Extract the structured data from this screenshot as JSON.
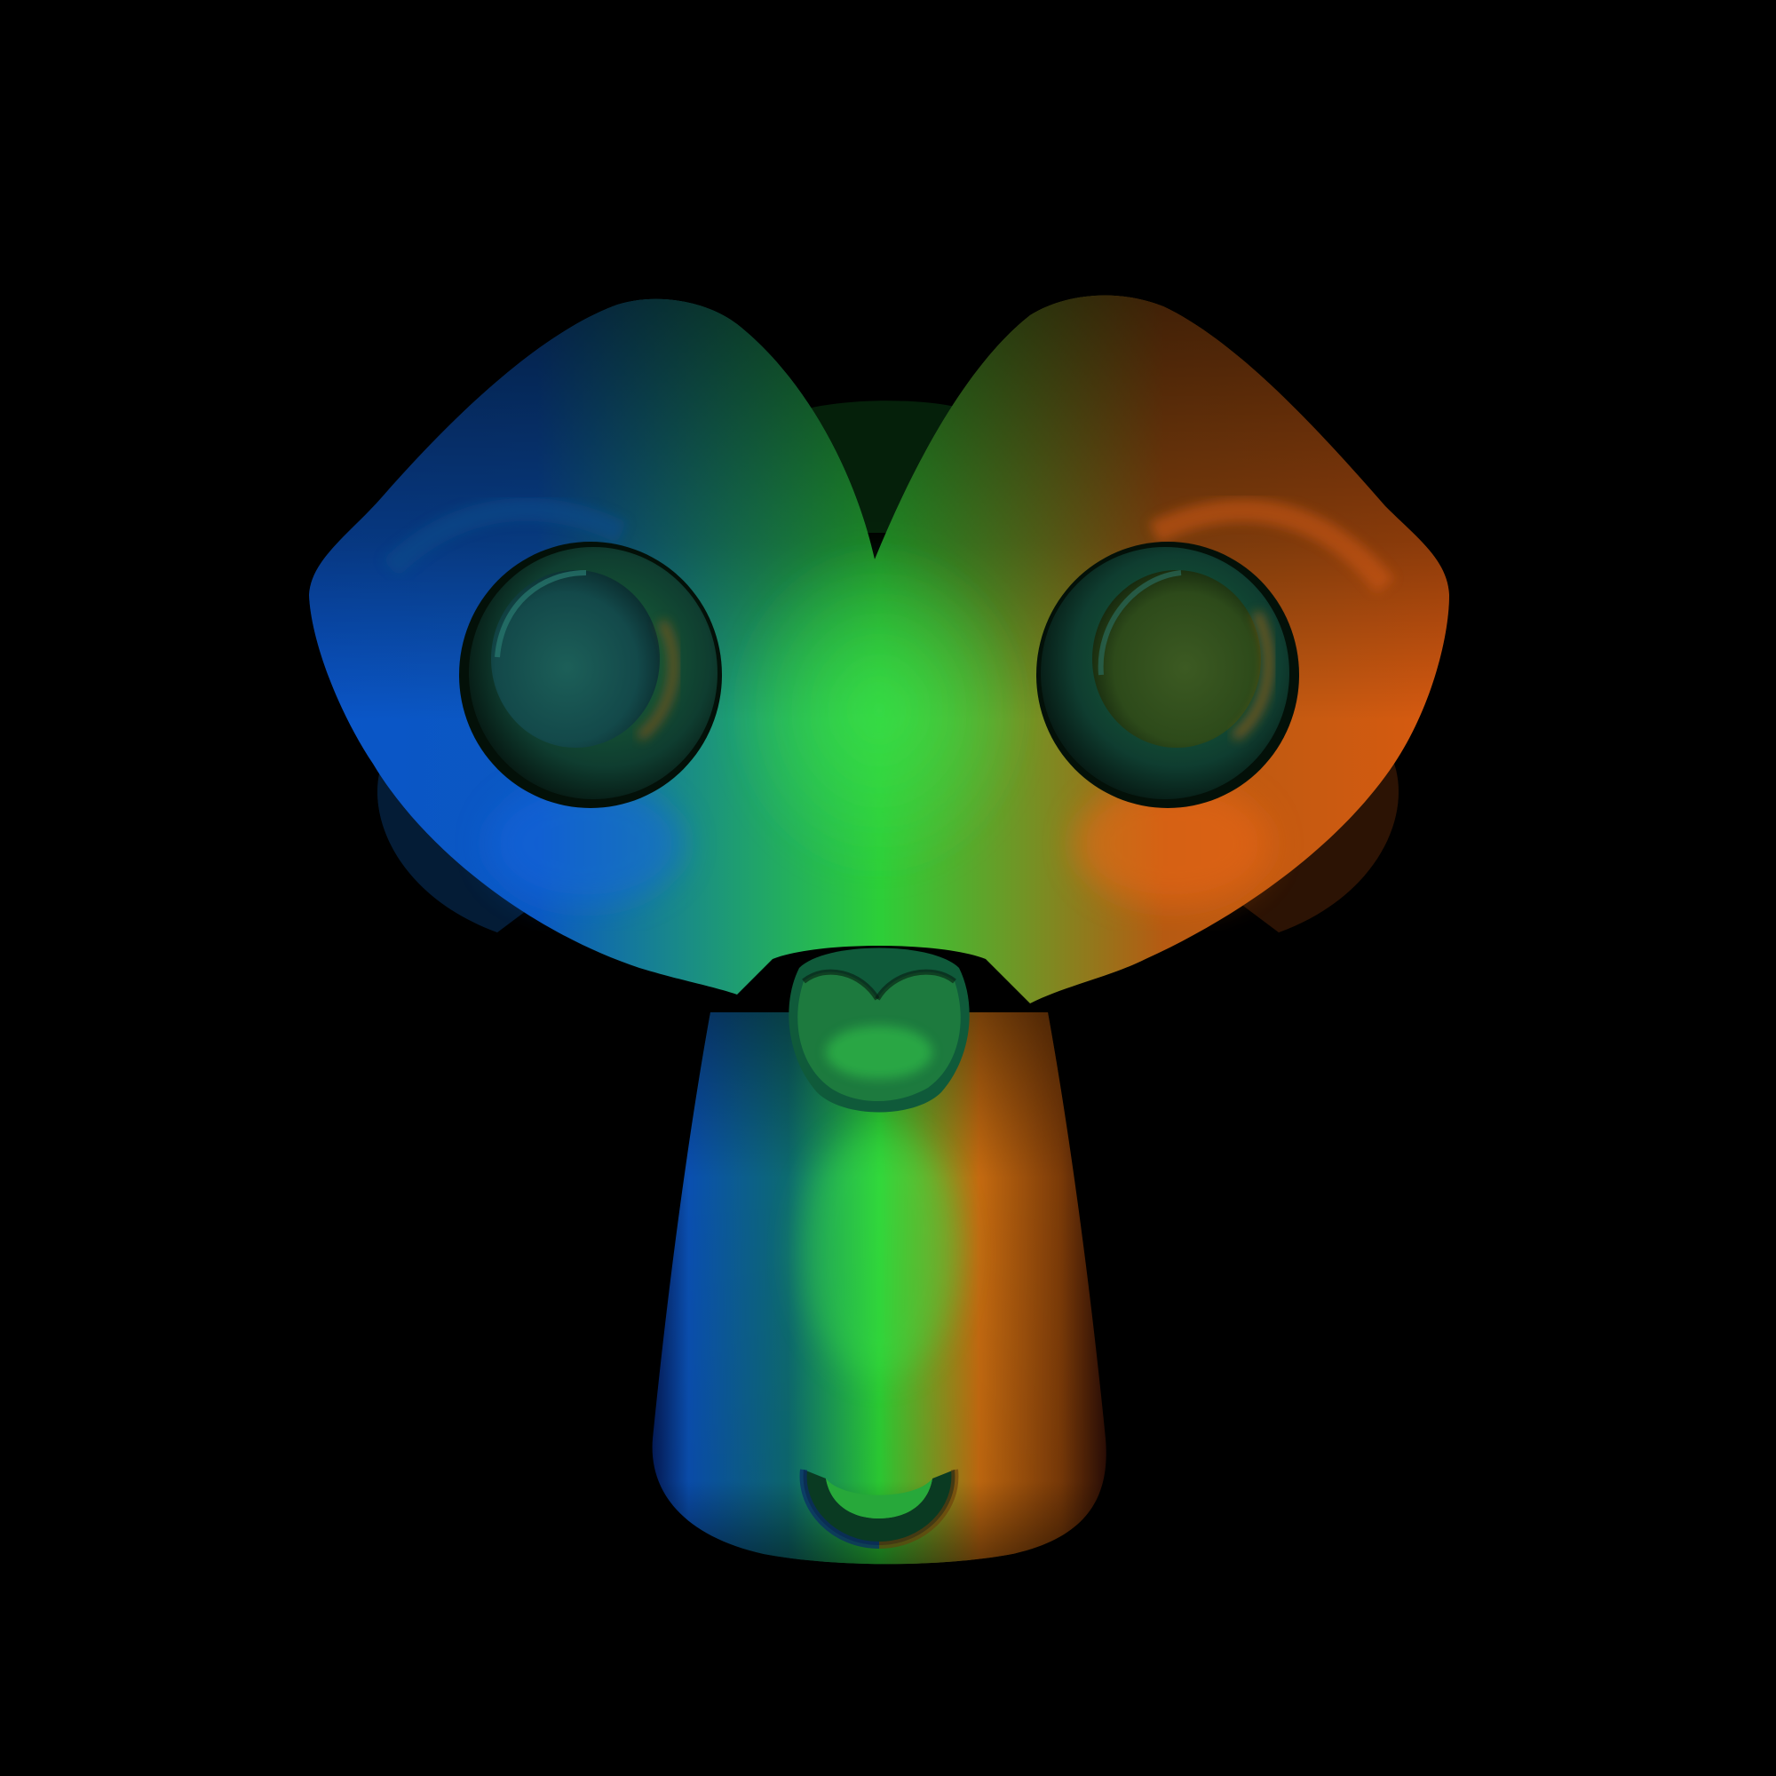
{
  "viewport": {
    "background": "#000000"
  },
  "model": {
    "subject": "monkey-head-mesh",
    "shading": "normal-map-colors",
    "palette": {
      "left": "#0a55c8",
      "center": "#2ccf38",
      "right": "#d85a10",
      "shadow": "#041a08"
    }
  }
}
